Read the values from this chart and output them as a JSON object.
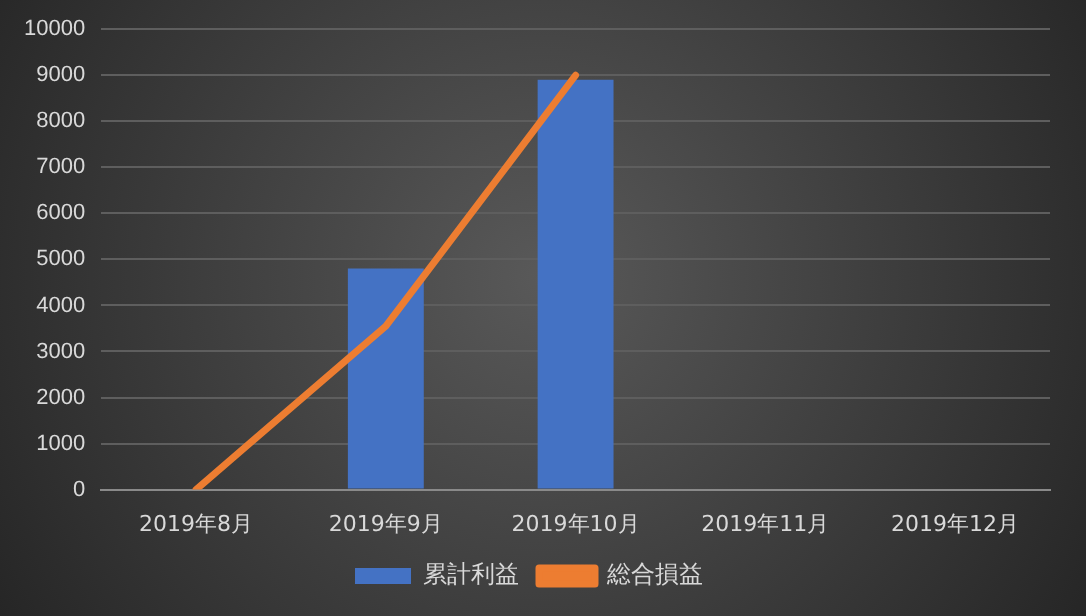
{
  "chart_data": {
    "type": "bar",
    "categories": [
      "2019年8月",
      "2019年9月",
      "2019年10月",
      "2019年11月",
      "2019年12月"
    ],
    "series": [
      {
        "name": "累計利益",
        "color": "#4472c4",
        "values": [
          null,
          4800,
          8900,
          null,
          null
        ]
      },
      {
        "name": "総合損益",
        "type": "line",
        "color": "#ed7d31",
        "values": [
          0,
          3550,
          9000,
          null,
          null
        ]
      }
    ],
    "ylim": [
      0,
      10000
    ],
    "yticks": [
      0,
      1000,
      2000,
      3000,
      4000,
      5000,
      6000,
      7000,
      8000,
      9000,
      10000
    ],
    "grid": "y",
    "legend": "bottom",
    "marker": "none",
    "line_style": "solid"
  }
}
